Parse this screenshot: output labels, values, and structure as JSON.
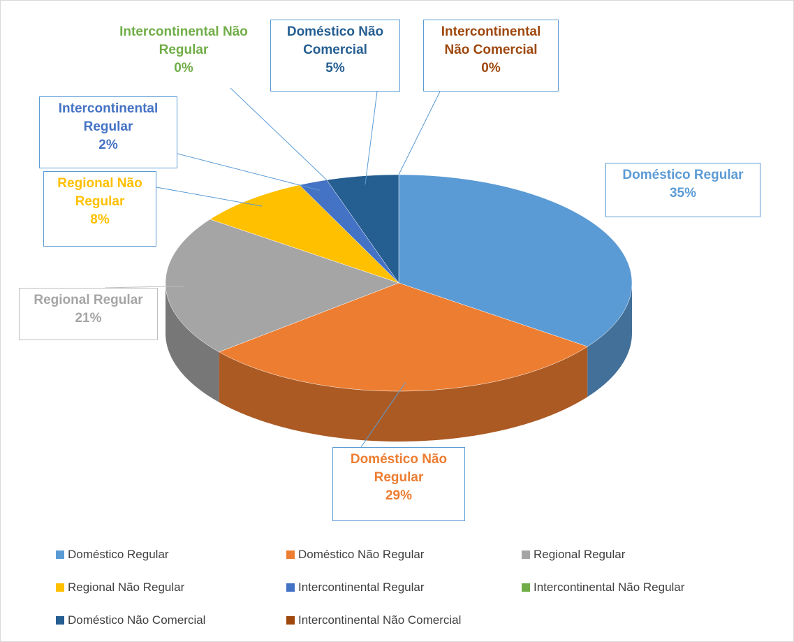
{
  "chart_data": {
    "type": "pie",
    "categories": [
      "Doméstico Regular",
      "Doméstico Não Regular",
      "Regional Regular",
      "Regional Não Regular",
      "Intercontinental Regular",
      "Intercontinental Não Regular",
      "Doméstico Não Comercial",
      "Intercontinental Não Comercial"
    ],
    "values": [
      35,
      29,
      21,
      8,
      2,
      0,
      5,
      0
    ],
    "value_labels": [
      "35%",
      "29%",
      "21%",
      "8%",
      "2%",
      "0%",
      "5%",
      "0%"
    ],
    "colors": [
      "#5b9bd5",
      "#ed7d31",
      "#a5a5a5",
      "#ffc000",
      "#4472c4",
      "#70ad47",
      "#255e91",
      "#9e480e"
    ],
    "legend": "bottom"
  }
}
